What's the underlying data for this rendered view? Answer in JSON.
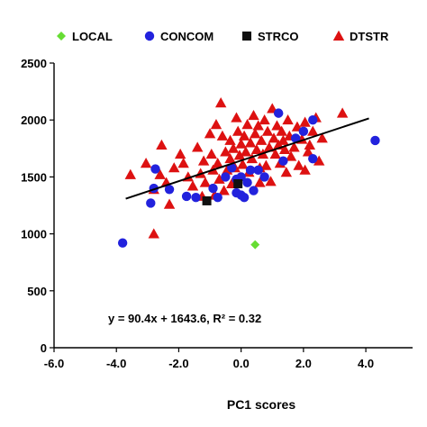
{
  "chart_data": {
    "type": "scatter",
    "title": "",
    "xlabel": "PC1 scores",
    "ylabel": "",
    "xlim": [
      -6,
      5.5
    ],
    "ylim": [
      0,
      2500
    ],
    "xticks": [
      -6,
      -4,
      -2,
      0,
      2,
      4
    ],
    "xtick_labels": [
      "-6.0",
      "-4.0",
      "-2.0",
      "0.0",
      "2.0",
      "4.0"
    ],
    "yticks": [
      0,
      500,
      1000,
      1500,
      2000,
      2500
    ],
    "ytick_labels": [
      "0",
      "500",
      "1000",
      "1500",
      "2000",
      "2500"
    ],
    "grid": false,
    "legend_position": "top",
    "annotation": "y = 90.4x + 1643.6, R² = 0.32",
    "trendline": {
      "slope": 90.4,
      "intercept": 1643.6,
      "x_range": [
        -3.7,
        4.1
      ],
      "color": "#000000"
    },
    "series": [
      {
        "name": "LOCAL",
        "marker": "diamond",
        "color": "#66dd33",
        "points": [
          [
            0.45,
            905
          ]
        ]
      },
      {
        "name": "CONCOM",
        "marker": "circle",
        "color": "#2222dd",
        "points": [
          [
            -3.8,
            920
          ],
          [
            -2.75,
            1570
          ],
          [
            -2.9,
            1270
          ],
          [
            -2.8,
            1400
          ],
          [
            -2.3,
            1390
          ],
          [
            -1.75,
            1330
          ],
          [
            -1.45,
            1320
          ],
          [
            -0.9,
            1400
          ],
          [
            -0.75,
            1320
          ],
          [
            -0.5,
            1500
          ],
          [
            -0.3,
            1580
          ],
          [
            -0.15,
            1360
          ],
          [
            0.0,
            1340
          ],
          [
            0.1,
            1320
          ],
          [
            0.0,
            1500
          ],
          [
            0.2,
            1450
          ],
          [
            0.4,
            1380
          ],
          [
            0.55,
            1560
          ],
          [
            0.75,
            1500
          ],
          [
            1.2,
            2060
          ],
          [
            1.35,
            1640
          ],
          [
            1.75,
            1840
          ],
          [
            2.0,
            1900
          ],
          [
            2.3,
            1660
          ],
          [
            2.3,
            2000
          ],
          [
            4.3,
            1820
          ],
          [
            -0.15,
            1480
          ],
          [
            0.3,
            1560
          ]
        ]
      },
      {
        "name": "STRCO",
        "marker": "square",
        "color": "#111111",
        "points": [
          [
            -1.1,
            1290
          ],
          [
            -0.1,
            1440
          ]
        ]
      },
      {
        "name": "DTSTR",
        "marker": "triangle",
        "color": "#dd1111",
        "points": [
          [
            -3.55,
            1520
          ],
          [
            -3.05,
            1620
          ],
          [
            -2.8,
            1390
          ],
          [
            -2.8,
            1000
          ],
          [
            -2.6,
            1520
          ],
          [
            -2.4,
            1450
          ],
          [
            -2.3,
            1260
          ],
          [
            -2.15,
            1580
          ],
          [
            -1.95,
            1700
          ],
          [
            -1.85,
            1620
          ],
          [
            -1.7,
            1500
          ],
          [
            -1.55,
            1420
          ],
          [
            -1.4,
            1760
          ],
          [
            -1.3,
            1530
          ],
          [
            -1.2,
            1640
          ],
          [
            -1.15,
            1450
          ],
          [
            -1.0,
            1880
          ],
          [
            -0.95,
            1700
          ],
          [
            -0.9,
            1560
          ],
          [
            -0.85,
            1340
          ],
          [
            -0.8,
            1960
          ],
          [
            -0.75,
            1620
          ],
          [
            -0.7,
            1480
          ],
          [
            -0.65,
            2150
          ],
          [
            -0.6,
            1860
          ],
          [
            -0.55,
            1380
          ],
          [
            -0.5,
            1720
          ],
          [
            -0.45,
            1560
          ],
          [
            -0.35,
            1660
          ],
          [
            -0.35,
            1820
          ],
          [
            -0.3,
            1440
          ],
          [
            -0.25,
            1750
          ],
          [
            -0.2,
            1580
          ],
          [
            -0.15,
            2020
          ],
          [
            -0.1,
            1900
          ],
          [
            -0.05,
            1690
          ],
          [
            0.0,
            1790
          ],
          [
            0.05,
            1610
          ],
          [
            0.1,
            1860
          ],
          [
            0.15,
            1720
          ],
          [
            0.2,
            1960
          ],
          [
            0.25,
            1540
          ],
          [
            0.3,
            1800
          ],
          [
            0.35,
            1660
          ],
          [
            0.4,
            2040
          ],
          [
            0.45,
            1880
          ],
          [
            0.5,
            1740
          ],
          [
            0.55,
            1950
          ],
          [
            0.6,
            1580
          ],
          [
            0.65,
            1820
          ],
          [
            0.7,
            1700
          ],
          [
            0.75,
            2000
          ],
          [
            0.8,
            1600
          ],
          [
            0.85,
            1900
          ],
          [
            0.9,
            1760
          ],
          [
            0.95,
            1460
          ],
          [
            1.0,
            2100
          ],
          [
            1.05,
            1840
          ],
          [
            1.1,
            1700
          ],
          [
            1.15,
            1950
          ],
          [
            1.2,
            1780
          ],
          [
            1.25,
            1620
          ],
          [
            1.3,
            1900
          ],
          [
            1.35,
            1820
          ],
          [
            1.4,
            1740
          ],
          [
            1.45,
            1540
          ],
          [
            1.5,
            2000
          ],
          [
            1.55,
            1860
          ],
          [
            1.6,
            1680
          ],
          [
            1.7,
            1760
          ],
          [
            1.8,
            1940
          ],
          [
            1.85,
            1600
          ],
          [
            1.95,
            1830
          ],
          [
            2.05,
            1560
          ],
          [
            2.15,
            1720
          ],
          [
            2.2,
            1780
          ],
          [
            2.3,
            1900
          ],
          [
            2.4,
            2020
          ],
          [
            2.5,
            1640
          ],
          [
            2.6,
            1840
          ],
          [
            3.25,
            2060
          ],
          [
            2.05,
            1980
          ],
          [
            -1.25,
            1330
          ],
          [
            -2.55,
            1780
          ],
          [
            0.6,
            1450
          ]
        ]
      }
    ]
  }
}
